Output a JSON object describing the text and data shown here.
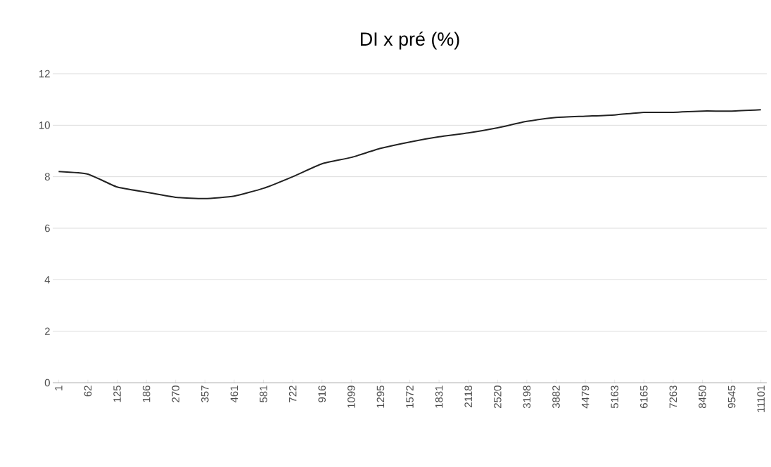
{
  "chart_data": {
    "type": "line",
    "title": "DI x pré (%)",
    "categories": [
      "1",
      "62",
      "125",
      "186",
      "270",
      "357",
      "461",
      "581",
      "722",
      "916",
      "1099",
      "1295",
      "1572",
      "1831",
      "2118",
      "2520",
      "3198",
      "3882",
      "4479",
      "5163",
      "6165",
      "7263",
      "8450",
      "9545",
      "11101"
    ],
    "series": [
      {
        "color": "#222222",
        "values": [
          8.2,
          8.1,
          7.6,
          7.4,
          7.2,
          7.15,
          7.25,
          7.55,
          8.0,
          8.5,
          8.75,
          9.1,
          9.35,
          9.55,
          9.7,
          9.9,
          10.15,
          10.3,
          10.35,
          10.4,
          10.5,
          10.5,
          10.55,
          10.55,
          10.6
        ]
      }
    ],
    "ylim": [
      0,
      12
    ],
    "yticks": [
      0,
      2,
      4,
      6,
      8,
      10,
      12
    ],
    "grid": "y",
    "marker": "none",
    "line_style": "solid"
  }
}
